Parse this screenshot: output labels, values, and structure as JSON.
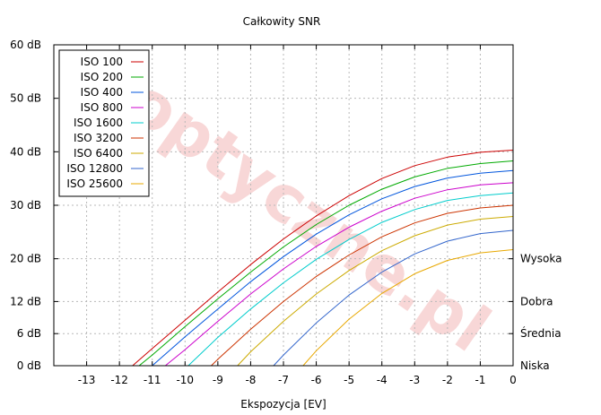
{
  "chart_data": {
    "type": "line",
    "title": "Całkowity SNR",
    "xlabel": "Ekspozycja [EV]",
    "ylabel": "",
    "xlim": [
      -14,
      0
    ],
    "ylim": [
      0,
      60
    ],
    "x_ticks": [
      {
        "value": -13,
        "label": "-13"
      },
      {
        "value": -12,
        "label": "-12"
      },
      {
        "value": -11,
        "label": "-11"
      },
      {
        "value": -10,
        "label": "-10"
      },
      {
        "value": -9,
        "label": "-9"
      },
      {
        "value": -8,
        "label": "-8"
      },
      {
        "value": -7,
        "label": "-7"
      },
      {
        "value": -6,
        "label": "-6"
      },
      {
        "value": -5,
        "label": "-5"
      },
      {
        "value": -4,
        "label": "-4"
      },
      {
        "value": -3,
        "label": "-3"
      },
      {
        "value": -2,
        "label": "-2"
      },
      {
        "value": -1,
        "label": "-1"
      },
      {
        "value": 0,
        "label": "0"
      }
    ],
    "y_ticks": [
      {
        "value": 0,
        "label": "0 dB"
      },
      {
        "value": 6,
        "label": "6 dB"
      },
      {
        "value": 12,
        "label": "12 dB"
      },
      {
        "value": 20,
        "label": "20 dB"
      },
      {
        "value": 30,
        "label": "30 dB"
      },
      {
        "value": 40,
        "label": "40 dB"
      },
      {
        "value": 50,
        "label": "50 dB"
      },
      {
        "value": 60,
        "label": "60 dB"
      }
    ],
    "y_right_ticks": [
      {
        "value": 0,
        "label": "Niska"
      },
      {
        "value": 6,
        "label": "Średnia"
      },
      {
        "value": 12,
        "label": "Dobra"
      },
      {
        "value": 20,
        "label": "Wysoka"
      }
    ],
    "grid": true,
    "legend_position": "top-left",
    "series": [
      {
        "name": "ISO 100",
        "color": "#cc0000",
        "x": [
          -11.6,
          -11,
          -10,
          -9,
          -8,
          -7,
          -6,
          -5,
          -4,
          -3,
          -2,
          -1,
          0
        ],
        "y": [
          0,
          3.2,
          8.5,
          13.8,
          18.9,
          23.7,
          28.0,
          31.8,
          35.0,
          37.4,
          39.0,
          39.9,
          40.3
        ]
      },
      {
        "name": "ISO 200",
        "color": "#00aa00",
        "x": [
          -11.4,
          -11,
          -10,
          -9,
          -8,
          -7,
          -6,
          -5,
          -4,
          -3,
          -2,
          -1,
          0
        ],
        "y": [
          0,
          2.0,
          7.3,
          12.5,
          17.5,
          22.2,
          26.4,
          30.0,
          33.0,
          35.3,
          36.9,
          37.8,
          38.3
        ]
      },
      {
        "name": "ISO 400",
        "color": "#0055dd",
        "x": [
          -11.0,
          -10,
          -9,
          -8,
          -7,
          -6,
          -5,
          -4,
          -3,
          -2,
          -1,
          0
        ],
        "y": [
          0,
          5.4,
          10.6,
          15.7,
          20.4,
          24.6,
          28.2,
          31.2,
          33.5,
          35.1,
          36.0,
          36.5
        ]
      },
      {
        "name": "ISO 800",
        "color": "#cc00cc",
        "x": [
          -10.6,
          -10,
          -9,
          -8,
          -7,
          -6,
          -5,
          -4,
          -3,
          -2,
          -1,
          0
        ],
        "y": [
          0,
          3.0,
          8.3,
          13.4,
          18.1,
          22.3,
          25.9,
          28.9,
          31.3,
          32.9,
          33.8,
          34.2
        ]
      },
      {
        "name": "ISO 1600",
        "color": "#00cccc",
        "x": [
          -9.9,
          -9,
          -8,
          -7,
          -6,
          -5,
          -4,
          -3,
          -2,
          -1,
          0
        ],
        "y": [
          0,
          5.3,
          10.6,
          15.5,
          19.9,
          23.6,
          26.8,
          29.2,
          30.9,
          31.8,
          32.3
        ]
      },
      {
        "name": "ISO 3200",
        "color": "#cc3300",
        "x": [
          -9.2,
          -9,
          -8,
          -7,
          -6,
          -5,
          -4,
          -3,
          -2,
          -1,
          0
        ],
        "y": [
          0,
          1.2,
          6.8,
          12.0,
          16.7,
          20.7,
          24.1,
          26.7,
          28.5,
          29.5,
          30.0
        ]
      },
      {
        "name": "ISO 6400",
        "color": "#ccaa00",
        "x": [
          -8.4,
          -8,
          -7,
          -6,
          -5,
          -4,
          -3,
          -2,
          -1,
          0
        ],
        "y": [
          0,
          2.6,
          8.3,
          13.4,
          17.8,
          21.5,
          24.3,
          26.3,
          27.4,
          27.9
        ]
      },
      {
        "name": "ISO 12800",
        "color": "#3366cc",
        "x": [
          -7.3,
          -7,
          -6,
          -5,
          -4,
          -3,
          -2,
          -1,
          0
        ],
        "y": [
          0,
          2.0,
          8.0,
          13.2,
          17.5,
          20.9,
          23.3,
          24.7,
          25.3
        ]
      },
      {
        "name": "ISO 25600",
        "color": "#e8a800",
        "x": [
          -6.4,
          -6,
          -5,
          -4,
          -3,
          -2,
          -1,
          0
        ],
        "y": [
          0,
          2.8,
          8.7,
          13.5,
          17.2,
          19.7,
          21.1,
          21.7
        ]
      }
    ],
    "watermark": "optyczne.pl"
  }
}
